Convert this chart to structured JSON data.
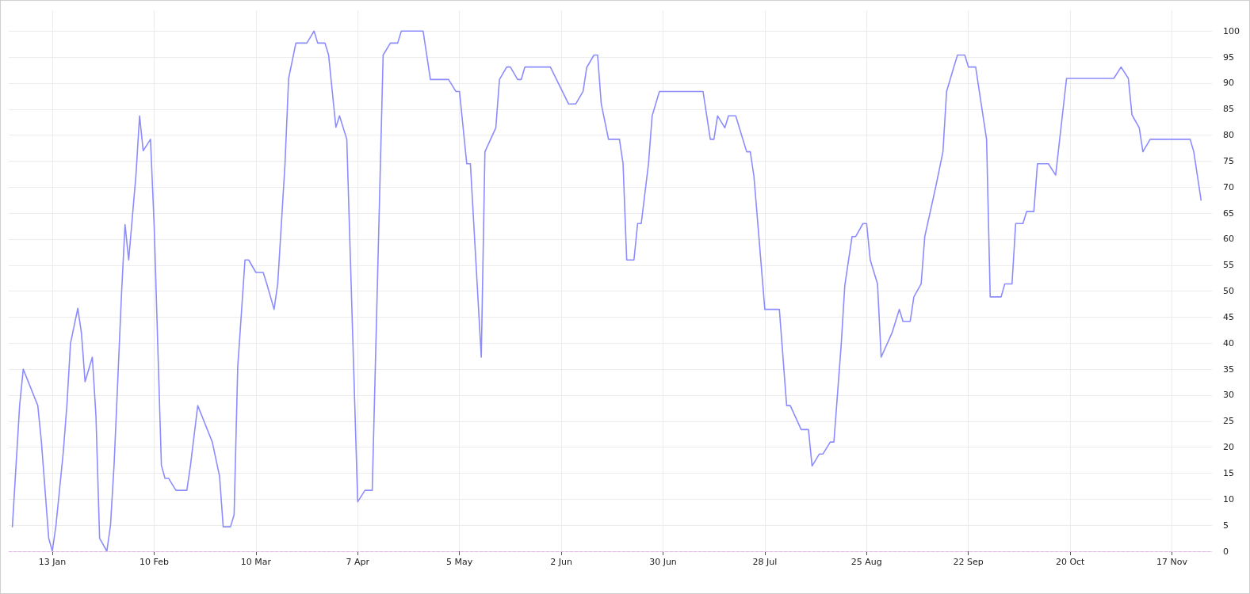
{
  "chart_data": {
    "type": "line",
    "marker": "none",
    "line_style": "solid",
    "grid": true,
    "xlim": [
      "--01-01",
      "--11-28"
    ],
    "xticks": [
      {
        "value": "--01-13",
        "label": "13 Jan"
      },
      {
        "value": "--02-10",
        "label": "10 Feb"
      },
      {
        "value": "--03-10",
        "label": "10 Mar"
      },
      {
        "value": "--04-07",
        "label": "7 Apr"
      },
      {
        "value": "--05-05",
        "label": "5 May"
      },
      {
        "value": "--06-02",
        "label": "2 Jun"
      },
      {
        "value": "--06-30",
        "label": "30 Jun"
      },
      {
        "value": "--07-28",
        "label": "28 Jul"
      },
      {
        "value": "--08-25",
        "label": "25 Aug"
      },
      {
        "value": "--09-22",
        "label": "22 Sep"
      },
      {
        "value": "--10-20",
        "label": "20 Oct"
      },
      {
        "value": "--11-17",
        "label": "17 Nov"
      }
    ],
    "ylim": [
      0,
      104
    ],
    "yticks": [
      0,
      5,
      10,
      15,
      20,
      25,
      30,
      35,
      40,
      45,
      50,
      55,
      60,
      65,
      70,
      75,
      80,
      85,
      90,
      95,
      100
    ],
    "ref_lines": [
      {
        "axis": "y",
        "value": 0,
        "color": "#e8b4e8",
        "line_style": "dashed"
      }
    ],
    "series": [
      {
        "color": "#8c8cff",
        "x": [
          "--01-02",
          "--01-04",
          "--01-05",
          "--01-09",
          "--01-10",
          "--01-12",
          "--01-13",
          "--01-14",
          "--01-16",
          "--01-17",
          "--01-18",
          "--01-20",
          "--01-21",
          "--01-22",
          "--01-24",
          "--01-25",
          "--01-26",
          "--01-28",
          "--01-29",
          "--01-30",
          "--02-01",
          "--02-02",
          "--02-03",
          "--02-05",
          "--02-06",
          "--02-07",
          "--02-09",
          "--02-10",
          "--02-12",
          "--02-13",
          "--02-14",
          "--02-16",
          "--02-19",
          "--02-20",
          "--02-22",
          "--02-26",
          "--02-28",
          "--03-01",
          "--03-03",
          "--03-04",
          "--03-05",
          "--03-07",
          "--03-08",
          "--03-10",
          "--03-12",
          "--03-13",
          "--03-15",
          "--03-16",
          "--03-18",
          "--03-19",
          "--03-21",
          "--03-24",
          "--03-26",
          "--03-27",
          "--03-29",
          "--03-30",
          "--04-01",
          "--04-02",
          "--04-04",
          "--04-07",
          "--04-09",
          "--04-11",
          "--04-14",
          "--04-16",
          "--04-18",
          "--04-19",
          "--04-25",
          "--04-27",
          "--05-02",
          "--05-04",
          "--05-05",
          "--05-07",
          "--05-08",
          "--05-11",
          "--05-12",
          "--05-15",
          "--05-16",
          "--05-18",
          "--05-19",
          "--05-21",
          "--05-22",
          "--05-23",
          "--05-30",
          "--06-04",
          "--06-06",
          "--06-08",
          "--06-09",
          "--06-11",
          "--06-12",
          "--06-13",
          "--06-15",
          "--06-18",
          "--06-19",
          "--06-20",
          "--06-22",
          "--06-23",
          "--06-24",
          "--06-26",
          "--06-27",
          "--06-29",
          "--07-11",
          "--07-13",
          "--07-14",
          "--07-15",
          "--07-17",
          "--07-18",
          "--07-20",
          "--07-21",
          "--07-23",
          "--07-24",
          "--07-25",
          "--07-28",
          "--08-01",
          "--08-03",
          "--08-04",
          "--08-07",
          "--08-09",
          "--08-10",
          "--08-12",
          "--08-13",
          "--08-15",
          "--08-16",
          "--08-18",
          "--08-19",
          "--08-21",
          "--08-22",
          "--08-24",
          "--08-25",
          "--08-26",
          "--08-28",
          "--08-29",
          "--09-01",
          "--09-03",
          "--09-04",
          "--09-06",
          "--09-07",
          "--09-09",
          "--09-10",
          "--09-13",
          "--09-15",
          "--09-16",
          "--09-18",
          "--09-19",
          "--09-21",
          "--09-22",
          "--09-24",
          "--09-25",
          "--09-27",
          "--09-28",
          "--10-01",
          "--10-02",
          "--10-04",
          "--10-05",
          "--10-07",
          "--10-08",
          "--10-10",
          "--10-11",
          "--10-14",
          "--10-16",
          "--10-19",
          "--11-01",
          "--11-03",
          "--11-05",
          "--11-06",
          "--11-08",
          "--11-09",
          "--11-11",
          "--11-22",
          "--11-23",
          "--11-25"
        ],
        "values": [
          4.7,
          28,
          35,
          28,
          21,
          2.5,
          0,
          5,
          19,
          28,
          40,
          46.7,
          42,
          32.6,
          37.3,
          26,
          2.5,
          0,
          5,
          16.8,
          49,
          62.8,
          56,
          72.3,
          83.7,
          77,
          79.2,
          62.8,
          16.5,
          14,
          14,
          11.7,
          11.7,
          16.5,
          28,
          21,
          14.4,
          4.7,
          4.7,
          7,
          35.4,
          56,
          56,
          53.6,
          53.6,
          51.4,
          46.5,
          51.4,
          74.4,
          90.9,
          97.7,
          97.7,
          100,
          97.7,
          97.7,
          95.4,
          81.5,
          83.7,
          79.2,
          9.5,
          11.7,
          11.7,
          95.4,
          97.7,
          97.7,
          100,
          100,
          90.7,
          90.7,
          88.4,
          88.4,
          74.5,
          74.5,
          37.3,
          76.8,
          81.4,
          90.7,
          93.1,
          93.1,
          90.7,
          90.7,
          93.1,
          93.1,
          86,
          86,
          88.4,
          93,
          95.4,
          95.4,
          86,
          79.2,
          79.2,
          74.5,
          56,
          56,
          63,
          63,
          74.5,
          83.7,
          88.4,
          88.4,
          79.2,
          79.2,
          83.7,
          81.4,
          83.7,
          83.7,
          81.4,
          76.8,
          76.8,
          72.1,
          46.5,
          46.5,
          28,
          28,
          23.4,
          23.4,
          16.4,
          18.7,
          18.7,
          21,
          21,
          39.6,
          51.1,
          60.5,
          60.5,
          63,
          63,
          56,
          51.4,
          37.3,
          42,
          46.5,
          44.2,
          44.2,
          48.9,
          51.4,
          60.5,
          70,
          76.8,
          88.4,
          93.1,
          95.4,
          95.4,
          93.1,
          93.1,
          88.4,
          79.2,
          48.9,
          48.9,
          51.4,
          51.4,
          63,
          63,
          65.3,
          65.3,
          74.5,
          74.5,
          72.3,
          90.9,
          90.9,
          93.1,
          90.9,
          83.9,
          81.4,
          76.8,
          79.2,
          79.2,
          76.8,
          67.5
        ]
      }
    ]
  }
}
